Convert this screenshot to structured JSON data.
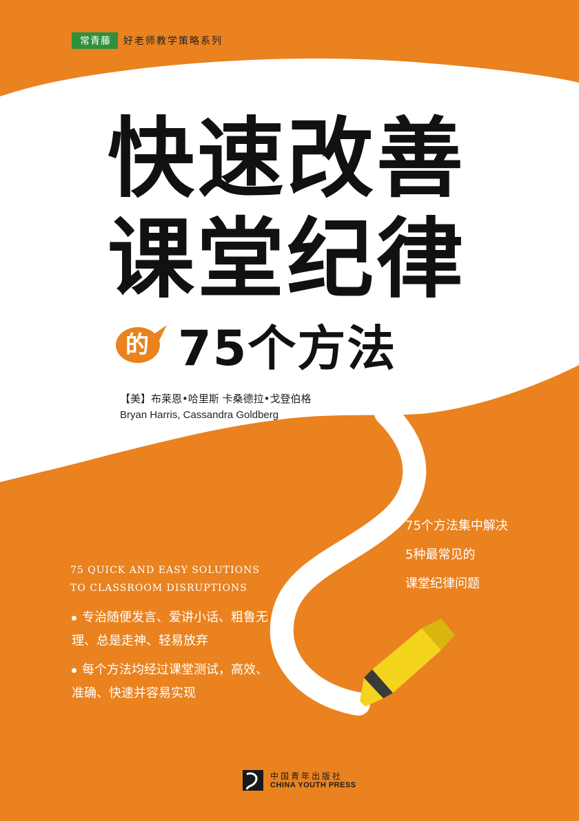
{
  "series": {
    "brand": "常青藤",
    "name": "好老师教学策略系列"
  },
  "title": {
    "line1": "快速改善",
    "line2": "课堂纪律",
    "de": "的",
    "subtitle": "75个方法"
  },
  "authors": {
    "cn": "【美】布莱恩•哈里斯 卡桑德拉•戈登伯格",
    "en": "Bryan Harris, Cassandra Goldberg"
  },
  "callout": [
    "75个方法集中解决",
    "5种最常见的",
    "课堂纪律问题"
  ],
  "english_subtitle": [
    "75 QUICK AND EASY SOLUTIONS",
    "TO CLASSROOM DISRUPTIONS"
  ],
  "bullets": [
    "专治随便发言、爱讲小话、粗鲁无理、总是走神、轻易放弃",
    "每个方法均经过课堂测试，高效、准确、快速并容易实现"
  ],
  "publisher": {
    "cn": "中国青年出版社",
    "en": "CHINA YOUTH PRESS"
  },
  "colors": {
    "orange": "#e9821f",
    "white": "#ffffff",
    "series_green": "#2f8f3a",
    "highlighter_yellow": "#f5d41e",
    "text_dark": "#111111"
  },
  "icons": {
    "highlighter": "highlighter-marker-icon",
    "bubble": "speech-bubble-icon",
    "publisher": "publisher-logo-icon"
  }
}
